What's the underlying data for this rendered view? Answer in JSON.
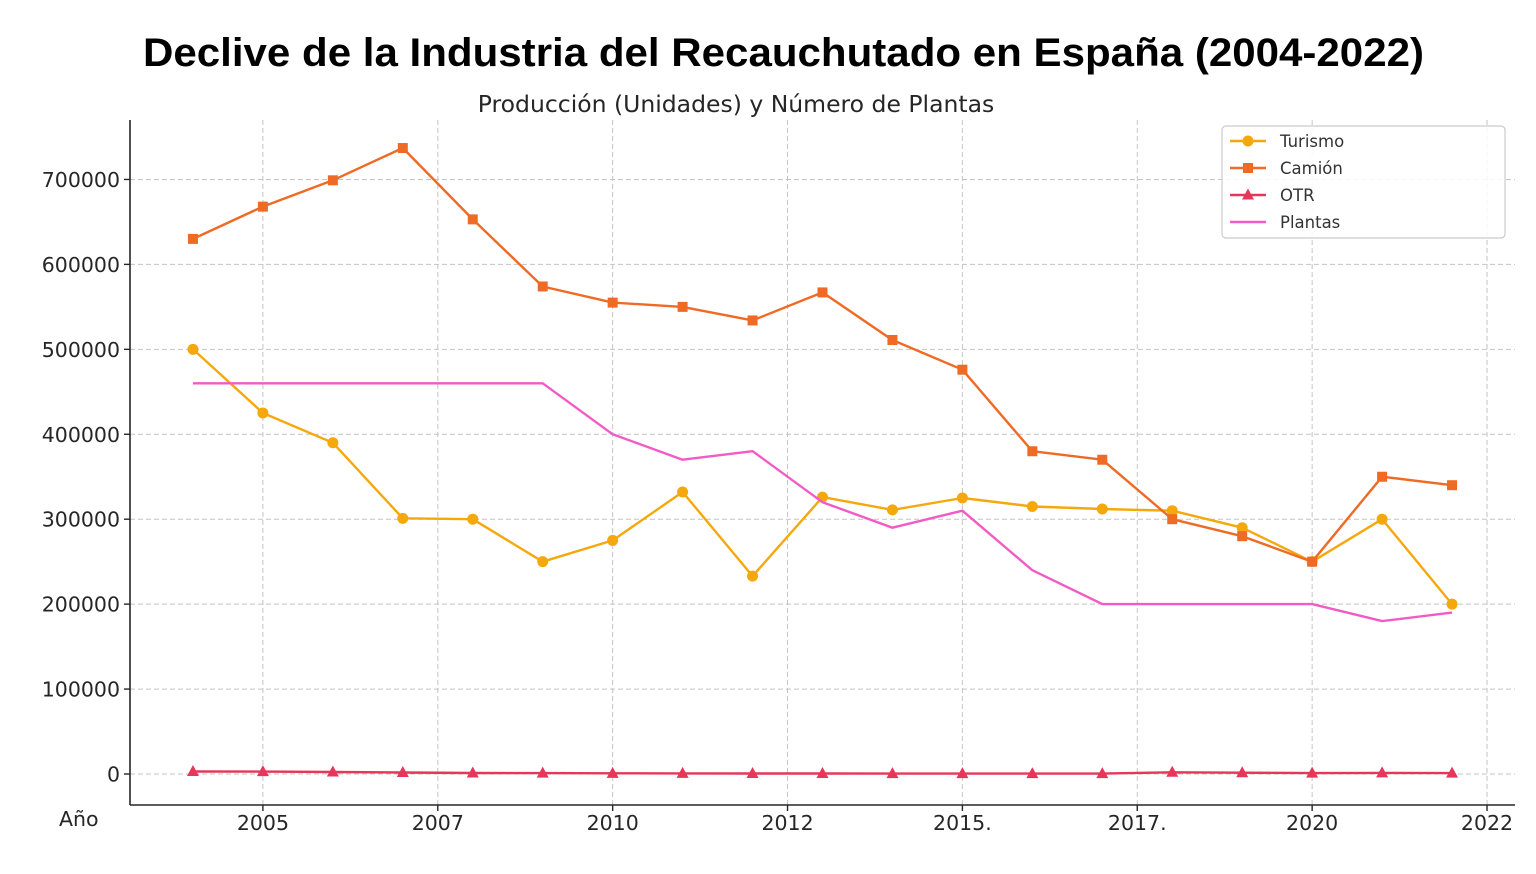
{
  "chart_data": {
    "type": "line",
    "title": "Declive de la Industria del Recauchutado en España (2004-2022)",
    "subtitle": "Producción (Unidades) y Número de Plantas",
    "xlabel": "Año",
    "x": [
      2004,
      2005,
      2006,
      2007,
      2008,
      2009,
      2010,
      2011,
      2012,
      2013,
      2014,
      2015,
      2016,
      2017,
      2018,
      2019,
      2020,
      2021,
      2022
    ],
    "xlim": [
      2003.1,
      2022.9
    ],
    "ylim": [
      -36500,
      770000
    ],
    "xticks": [
      {
        "value": 2005,
        "label": "2005"
      },
      {
        "value": 2007.5,
        "label": "2007"
      },
      {
        "value": 2010,
        "label": "2010"
      },
      {
        "value": 2012.5,
        "label": "2012"
      },
      {
        "value": 2015,
        "label": "2015."
      },
      {
        "value": 2017.5,
        "label": "2017."
      },
      {
        "value": 2020,
        "label": "2020"
      },
      {
        "value": 2022.5,
        "label": "2022"
      }
    ],
    "yticks": [
      {
        "value": 0,
        "label": "0"
      },
      {
        "value": 100000,
        "label": "100000"
      },
      {
        "value": 200000,
        "label": "200000"
      },
      {
        "value": 300000,
        "label": "300000"
      },
      {
        "value": 400000,
        "label": "400000"
      },
      {
        "value": 500000,
        "label": "500000"
      },
      {
        "value": 600000,
        "label": "600000"
      },
      {
        "value": 700000,
        "label": "700000"
      }
    ],
    "grid": true,
    "legend": "top-right",
    "series": [
      {
        "name": "Turismo",
        "color": "#F5A80C",
        "marker": "circle",
        "values": [
          500000,
          425000,
          390000,
          301000,
          300000,
          250000,
          275000,
          332000,
          233000,
          326000,
          311000,
          325000,
          315000,
          312000,
          310000,
          290000,
          250000,
          300000,
          200000
        ]
      },
      {
        "name": "Camión",
        "color": "#EF6A24",
        "marker": "square",
        "values": [
          630000,
          668000,
          699000,
          737000,
          653000,
          574000,
          555000,
          550000,
          534000,
          567000,
          511000,
          476000,
          380000,
          370000,
          300000,
          280000,
          250000,
          350000,
          340000
        ]
      },
      {
        "name": "OTR",
        "color": "#E6375A",
        "marker": "triangle",
        "values": [
          3000,
          2800,
          2300,
          1800,
          1200,
          1000,
          800,
          700,
          600,
          600,
          500,
          500,
          500,
          500,
          2000,
          1500,
          1000,
          1300,
          1000
        ]
      },
      {
        "name": "Plantas",
        "color": "#F25BC6",
        "marker": "none",
        "values": [
          460000,
          460000,
          460000,
          460000,
          460000,
          460000,
          400000,
          370000,
          380000,
          320000,
          290000,
          310000,
          240000,
          200000,
          200000,
          200000,
          200000,
          180000,
          190000
        ]
      }
    ]
  }
}
